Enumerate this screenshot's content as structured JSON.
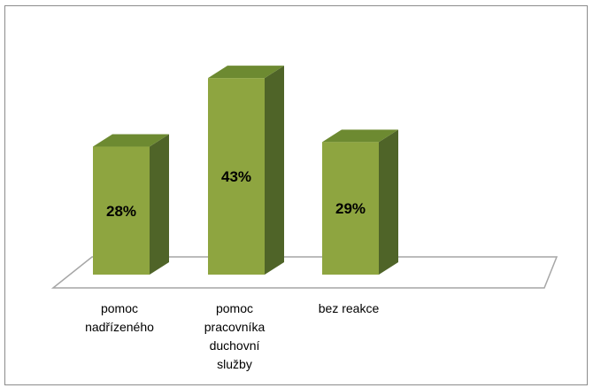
{
  "chart_data": {
    "type": "bar",
    "title": "",
    "xlabel": "",
    "ylabel": "",
    "categories": [
      [
        "pomoc",
        "nadřízeného"
      ],
      [
        "pomoc",
        "pracovníka",
        "duchovní",
        "služby"
      ],
      [
        "bez reakce"
      ]
    ],
    "values": [
      28,
      43,
      29
    ],
    "data_labels": [
      "28%",
      "43%",
      "29%"
    ],
    "value_unit": "%",
    "ylim": [
      0,
      50
    ],
    "grid": false,
    "legend": "none",
    "style": "3d-columns"
  },
  "colors": {
    "bar_front": "#8ea540",
    "bar_top": "#6d8a31",
    "bar_side": "#4f6428",
    "floor_fill": "#ffffff",
    "floor_stroke": "#a6a6a6",
    "frame_border": "#8c8c8c"
  }
}
